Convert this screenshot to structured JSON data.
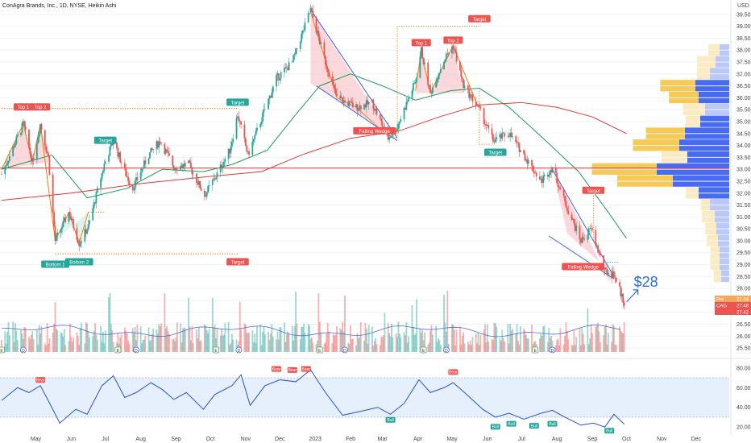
{
  "header": {
    "title": "ConAgra Brands, Inc., 1D, NYSE, Heikin Ashi",
    "currency": "USD"
  },
  "colors": {
    "up": "#26a69a",
    "down": "#ef5350",
    "ma_fast": "#1e9a5a",
    "ma_slow": "#e53935",
    "pattern_fill": "#f8c8cc",
    "profile_blue": "#3d63f0",
    "profile_yellow": "#f7c64c",
    "rsi_line": "#2a4fd6",
    "rsi_band": "#dbe8fb"
  },
  "chart_data": {
    "type": "candlestick",
    "x_axis": {
      "labels": [
        "May",
        "Jun",
        "Jul",
        "Aug",
        "Sep",
        "Oct",
        "Nov",
        "Dec",
        "2023",
        "Feb",
        "Mar",
        "Apr",
        "May",
        "Jun",
        "Jul",
        "Aug",
        "Sep",
        "Oct",
        "Nov",
        "Dec"
      ]
    },
    "y_axis": {
      "ticks": [
        "39.50",
        "39.00",
        "38.50",
        "38.00",
        "37.50",
        "37.00",
        "36.50",
        "36.00",
        "35.50",
        "35.00",
        "34.50",
        "34.00",
        "33.50",
        "33.00",
        "32.50",
        "32.00",
        "31.50",
        "31.00",
        "30.50",
        "30.00",
        "29.50",
        "29.00",
        "28.50",
        "28.00",
        "27.50",
        "27.00",
        "26.50",
        "26.00",
        "25.50"
      ],
      "range": [
        25.3,
        39.9
      ]
    },
    "price_path": [
      {
        "x": "2022-04-01",
        "y": 32.8
      },
      {
        "x": "2022-04-20",
        "y": 34.9
      },
      {
        "x": "2022-04-28",
        "y": 33.3
      },
      {
        "x": "2022-05-05",
        "y": 34.9
      },
      {
        "x": "2022-05-12",
        "y": 33.5
      },
      {
        "x": "2022-05-18",
        "y": 30.0
      },
      {
        "x": "2022-05-30",
        "y": 31.2
      },
      {
        "x": "2022-06-08",
        "y": 29.9
      },
      {
        "x": "2022-06-16",
        "y": 30.6
      },
      {
        "x": "2022-06-30",
        "y": 33.2
      },
      {
        "x": "2022-07-08",
        "y": 34.2
      },
      {
        "x": "2022-07-18",
        "y": 32.9
      },
      {
        "x": "2022-07-25",
        "y": 32.2
      },
      {
        "x": "2022-08-08",
        "y": 33.6
      },
      {
        "x": "2022-08-18",
        "y": 34.2
      },
      {
        "x": "2022-08-30",
        "y": 33.1
      },
      {
        "x": "2022-09-12",
        "y": 33.2
      },
      {
        "x": "2022-09-26",
        "y": 31.9
      },
      {
        "x": "2022-10-07",
        "y": 32.8
      },
      {
        "x": "2022-10-18",
        "y": 33.8
      },
      {
        "x": "2022-10-25",
        "y": 35.3
      },
      {
        "x": "2022-11-03",
        "y": 33.6
      },
      {
        "x": "2022-11-14",
        "y": 35.0
      },
      {
        "x": "2022-11-28",
        "y": 36.8
      },
      {
        "x": "2022-12-12",
        "y": 37.5
      },
      {
        "x": "2022-12-28",
        "y": 39.7
      },
      {
        "x": "2023-01-10",
        "y": 37.5
      },
      {
        "x": "2023-01-20",
        "y": 36.0
      },
      {
        "x": "2023-02-06",
        "y": 35.6
      },
      {
        "x": "2023-02-20",
        "y": 35.8
      },
      {
        "x": "2023-03-06",
        "y": 34.3
      },
      {
        "x": "2023-03-14",
        "y": 34.8
      },
      {
        "x": "2023-03-30",
        "y": 36.7
      },
      {
        "x": "2023-04-04",
        "y": 38.0
      },
      {
        "x": "2023-04-12",
        "y": 36.2
      },
      {
        "x": "2023-04-24",
        "y": 37.6
      },
      {
        "x": "2023-05-02",
        "y": 38.2
      },
      {
        "x": "2023-05-11",
        "y": 36.5
      },
      {
        "x": "2023-05-24",
        "y": 35.6
      },
      {
        "x": "2023-06-06",
        "y": 34.2
      },
      {
        "x": "2023-06-20",
        "y": 34.5
      },
      {
        "x": "2023-07-03",
        "y": 33.6
      },
      {
        "x": "2023-07-18",
        "y": 32.5
      },
      {
        "x": "2023-07-28",
        "y": 33.1
      },
      {
        "x": "2023-08-08",
        "y": 31.6
      },
      {
        "x": "2023-08-22",
        "y": 30.0
      },
      {
        "x": "2023-08-31",
        "y": 30.5
      },
      {
        "x": "2023-09-12",
        "y": 28.7
      },
      {
        "x": "2023-09-20",
        "y": 28.6
      },
      {
        "x": "2023-09-29",
        "y": 27.4
      }
    ],
    "moving_averages": [
      {
        "name": "fast",
        "points": [
          {
            "x": "2022-04-01",
            "y": 33.0
          },
          {
            "x": "2022-05-15",
            "y": 33.6
          },
          {
            "x": "2022-06-15",
            "y": 31.8
          },
          {
            "x": "2022-07-20",
            "y": 32.2
          },
          {
            "x": "2022-08-20",
            "y": 33.0
          },
          {
            "x": "2022-09-25",
            "y": 32.9
          },
          {
            "x": "2022-10-20",
            "y": 33.2
          },
          {
            "x": "2022-11-20",
            "y": 33.8
          },
          {
            "x": "2022-12-15",
            "y": 35.3
          },
          {
            "x": "2023-01-05",
            "y": 36.5
          },
          {
            "x": "2023-02-01",
            "y": 37.0
          },
          {
            "x": "2023-03-01",
            "y": 36.5
          },
          {
            "x": "2023-03-30",
            "y": 35.9
          },
          {
            "x": "2023-04-30",
            "y": 36.3
          },
          {
            "x": "2023-05-25",
            "y": 36.4
          },
          {
            "x": "2023-06-20",
            "y": 35.6
          },
          {
            "x": "2023-07-20",
            "y": 34.3
          },
          {
            "x": "2023-08-20",
            "y": 32.9
          },
          {
            "x": "2023-09-15",
            "y": 31.2
          },
          {
            "x": "2023-10-01",
            "y": 30.1
          }
        ]
      },
      {
        "name": "slow",
        "points": [
          {
            "x": "2022-04-01",
            "y": 31.7
          },
          {
            "x": "2022-06-01",
            "y": 32.0
          },
          {
            "x": "2022-08-01",
            "y": 32.4
          },
          {
            "x": "2022-10-01",
            "y": 32.7
          },
          {
            "x": "2022-11-15",
            "y": 32.9
          },
          {
            "x": "2022-12-20",
            "y": 33.6
          },
          {
            "x": "2023-02-01",
            "y": 34.3
          },
          {
            "x": "2023-03-15",
            "y": 34.6
          },
          {
            "x": "2023-04-20",
            "y": 35.2
          },
          {
            "x": "2023-05-25",
            "y": 35.7
          },
          {
            "x": "2023-07-01",
            "y": 35.8
          },
          {
            "x": "2023-08-01",
            "y": 35.6
          },
          {
            "x": "2023-09-01",
            "y": 35.2
          },
          {
            "x": "2023-10-01",
            "y": 34.5
          }
        ]
      }
    ],
    "horizontal_lines": [
      {
        "y": 33.05
      }
    ],
    "annotations": [
      {
        "text": "Top 1",
        "x": "2022-04-20",
        "y": 35.6,
        "color": "#ef5350"
      },
      {
        "text": "Top 2",
        "x": "2022-05-05",
        "y": 35.6,
        "color": "#ef5350"
      },
      {
        "text": "Bottom 1",
        "x": "2022-05-18",
        "y": 29.0,
        "color": "#26a69a"
      },
      {
        "text": "Bottom 2",
        "x": "2022-06-08",
        "y": 29.1,
        "color": "#26a69a"
      },
      {
        "text": "Target",
        "x": "2022-07-01",
        "y": 34.2,
        "color": "#26a69a"
      },
      {
        "text": "Target",
        "x": "2022-10-25",
        "y": 35.8,
        "color": "#26a69a"
      },
      {
        "text": "Target",
        "x": "2022-10-25",
        "y": 29.1,
        "color": "#ef5350"
      },
      {
        "text": "Falling Wedge",
        "x": "2023-02-22",
        "y": 34.6,
        "color": "#ef5350"
      },
      {
        "text": "Top 1",
        "x": "2023-04-04",
        "y": 38.3,
        "color": "#ef5350"
      },
      {
        "text": "Top 2",
        "x": "2023-05-02",
        "y": 38.4,
        "color": "#ef5350"
      },
      {
        "text": "Target",
        "x": "2023-05-25",
        "y": 39.3,
        "color": "#ef5350"
      },
      {
        "text": "Target",
        "x": "2023-06-08",
        "y": 33.7,
        "color": "#26a69a"
      },
      {
        "text": "Target",
        "x": "2023-09-02",
        "y": 32.1,
        "color": "#ef5350"
      },
      {
        "text": "Falling Wedge",
        "x": "2023-08-24",
        "y": 28.9,
        "color": "#ef5350"
      }
    ],
    "callout": {
      "text": "$28",
      "color": "#2a6fd6"
    },
    "price_labels": [
      {
        "code": "Pre",
        "value": "27.34",
        "color": "#f7a75a"
      },
      {
        "code": "CAG",
        "value": "27.48",
        "color": "#ef5350"
      },
      {
        "code": "",
        "value": "27.42",
        "color": "#ef5350"
      }
    ],
    "volume_profile": [
      {
        "price": 38.0,
        "blue": 0.12,
        "yellow": 0.12
      },
      {
        "price": 37.5,
        "blue": 0.17,
        "yellow": 0.2
      },
      {
        "price": 37.0,
        "blue": 0.24,
        "yellow": 0.14
      },
      {
        "price": 36.5,
        "blue": 0.42,
        "yellow": 0.38
      },
      {
        "price": 36.0,
        "blue": 0.38,
        "yellow": 0.32
      },
      {
        "price": 35.5,
        "blue": 0.3,
        "yellow": 0.24
      },
      {
        "price": 35.0,
        "blue": 0.36,
        "yellow": 0.16
      },
      {
        "price": 34.5,
        "blue": 0.55,
        "yellow": 0.42
      },
      {
        "price": 34.0,
        "blue": 0.62,
        "yellow": 0.5
      },
      {
        "price": 33.5,
        "blue": 0.52,
        "yellow": 0.28
      },
      {
        "price": 33.0,
        "blue": 0.9,
        "yellow": 0.7
      },
      {
        "price": 32.5,
        "blue": 0.7,
        "yellow": 0.6
      },
      {
        "price": 32.0,
        "blue": 0.38,
        "yellow": 0.14
      },
      {
        "price": 31.5,
        "blue": 0.24,
        "yellow": 0.1
      },
      {
        "price": 31.0,
        "blue": 0.18,
        "yellow": 0.14
      },
      {
        "price": 30.5,
        "blue": 0.16,
        "yellow": 0.12
      },
      {
        "price": 30.0,
        "blue": 0.14,
        "yellow": 0.12
      },
      {
        "price": 29.5,
        "blue": 0.12,
        "yellow": 0.1
      },
      {
        "price": 29.0,
        "blue": 0.12,
        "yellow": 0.1
      },
      {
        "price": 28.5,
        "blue": 0.1,
        "yellow": 0.08
      }
    ],
    "rsi": {
      "y_ticks": [
        "80.00",
        "60.00",
        "40.00",
        "20.00"
      ],
      "range": [
        12,
        88
      ],
      "band": [
        30,
        70
      ],
      "values": [
        {
          "x": "2022-04-01",
          "y": 47
        },
        {
          "x": "2022-04-15",
          "y": 60
        },
        {
          "x": "2022-04-25",
          "y": 55
        },
        {
          "x": "2022-05-05",
          "y": 62
        },
        {
          "x": "2022-05-15",
          "y": 40
        },
        {
          "x": "2022-05-22",
          "y": 24
        },
        {
          "x": "2022-06-05",
          "y": 38
        },
        {
          "x": "2022-06-15",
          "y": 33
        },
        {
          "x": "2022-06-28",
          "y": 62
        },
        {
          "x": "2022-07-08",
          "y": 72
        },
        {
          "x": "2022-07-18",
          "y": 50
        },
        {
          "x": "2022-07-28",
          "y": 55
        },
        {
          "x": "2022-08-10",
          "y": 65
        },
        {
          "x": "2022-08-20",
          "y": 58
        },
        {
          "x": "2022-08-30",
          "y": 48
        },
        {
          "x": "2022-09-10",
          "y": 55
        },
        {
          "x": "2022-09-25",
          "y": 38
        },
        {
          "x": "2022-10-05",
          "y": 53
        },
        {
          "x": "2022-10-20",
          "y": 62
        },
        {
          "x": "2022-10-28",
          "y": 73
        },
        {
          "x": "2022-11-05",
          "y": 42
        },
        {
          "x": "2022-11-18",
          "y": 62
        },
        {
          "x": "2022-12-01",
          "y": 68
        },
        {
          "x": "2022-12-15",
          "y": 66
        },
        {
          "x": "2022-12-28",
          "y": 78
        },
        {
          "x": "2023-01-10",
          "y": 55
        },
        {
          "x": "2023-01-25",
          "y": 32
        },
        {
          "x": "2023-02-10",
          "y": 36
        },
        {
          "x": "2023-02-25",
          "y": 40
        },
        {
          "x": "2023-03-08",
          "y": 33
        },
        {
          "x": "2023-03-20",
          "y": 44
        },
        {
          "x": "2023-04-02",
          "y": 68
        },
        {
          "x": "2023-04-12",
          "y": 55
        },
        {
          "x": "2023-04-24",
          "y": 60
        },
        {
          "x": "2023-05-02",
          "y": 65
        },
        {
          "x": "2023-05-12",
          "y": 55
        },
        {
          "x": "2023-05-28",
          "y": 38
        },
        {
          "x": "2023-06-08",
          "y": 30
        },
        {
          "x": "2023-06-20",
          "y": 34
        },
        {
          "x": "2023-07-03",
          "y": 28
        },
        {
          "x": "2023-07-18",
          "y": 34
        },
        {
          "x": "2023-07-28",
          "y": 37
        },
        {
          "x": "2023-08-08",
          "y": 30
        },
        {
          "x": "2023-08-22",
          "y": 22
        },
        {
          "x": "2023-09-02",
          "y": 24
        },
        {
          "x": "2023-09-12",
          "y": 20
        },
        {
          "x": "2023-09-20",
          "y": 33
        },
        {
          "x": "2023-09-29",
          "y": 23
        }
      ],
      "signals": [
        {
          "text": "Bear",
          "x": "2022-05-05",
          "y": 65
        },
        {
          "text": "Bear",
          "x": "2022-11-28",
          "y": 76
        },
        {
          "text": "Bear",
          "x": "2022-12-12",
          "y": 75
        },
        {
          "text": "Bear",
          "x": "2022-12-24",
          "y": 76
        },
        {
          "text": "Bull",
          "x": "2023-03-08",
          "y": 31
        },
        {
          "text": "Bear",
          "x": "2023-05-02",
          "y": 73
        },
        {
          "text": "Bull",
          "x": "2023-06-08",
          "y": 24
        },
        {
          "text": "Bull",
          "x": "2023-06-22",
          "y": 27
        },
        {
          "text": "Bull",
          "x": "2023-07-12",
          "y": 25
        },
        {
          "text": "Bull",
          "x": "2023-07-28",
          "y": 27
        },
        {
          "text": "Bull",
          "x": "2023-09-16",
          "y": 20
        }
      ]
    },
    "event_markers": [
      {
        "x": "2022-04-01",
        "text": "E"
      },
      {
        "x": "2022-04-20",
        "text": "D"
      },
      {
        "x": "2022-07-12",
        "text": "E"
      },
      {
        "x": "2022-07-28",
        "text": "D"
      },
      {
        "x": "2022-10-06",
        "text": "E"
      },
      {
        "x": "2022-10-26",
        "text": "D"
      },
      {
        "x": "2023-01-05",
        "text": "E"
      },
      {
        "x": "2023-01-27",
        "text": "D"
      },
      {
        "x": "2023-04-06",
        "text": "E"
      },
      {
        "x": "2023-04-26",
        "text": "D"
      },
      {
        "x": "2023-07-13",
        "text": "E"
      },
      {
        "x": "2023-07-28",
        "text": "D"
      }
    ]
  }
}
